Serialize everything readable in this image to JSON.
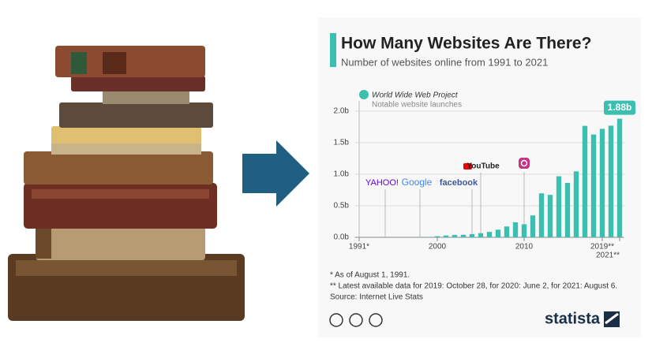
{
  "chart_data": {
    "type": "bar",
    "title": "How Many Websites Are There?",
    "subtitle": "Number of websites online from 1991 to 2021",
    "x": [
      1991,
      1992,
      1993,
      1994,
      1995,
      1996,
      1997,
      1998,
      1999,
      2000,
      2001,
      2002,
      2003,
      2004,
      2005,
      2006,
      2007,
      2008,
      2009,
      2010,
      2011,
      2012,
      2013,
      2014,
      2015,
      2016,
      2017,
      2018,
      2019,
      2020,
      2021
    ],
    "values": [
      1e-06,
      1e-05,
      0.00013,
      0.0027,
      0.023,
      0.257,
      1.1,
      2.4,
      3.2,
      17,
      29,
      38,
      40,
      51,
      65,
      86,
      121,
      172,
      238,
      207,
      347,
      697,
      673,
      968,
      863,
      1045,
      1767,
      1630,
      1720,
      1770,
      1880
    ],
    "value_labels": [
      null,
      null,
      null,
      null,
      null,
      null,
      null,
      null,
      null,
      null,
      null,
      null,
      null,
      null,
      null,
      null,
      null,
      null,
      null,
      null,
      null,
      null,
      null,
      null,
      null,
      null,
      null,
      null,
      null,
      null,
      "1.88b"
    ],
    "color": "#3bbfb0",
    "xlim": [
      1990.5,
      2021.5
    ],
    "xticks": [
      {
        "value": 1991,
        "label": "1991*"
      },
      2000,
      2010,
      {
        "value": 2019,
        "label": "2019**"
      },
      {
        "value": 2021,
        "label": "2021**"
      }
    ],
    "ylim": [
      0,
      2000
    ],
    "yticks": [
      {
        "value": 0,
        "label": "0.0b"
      },
      {
        "value": 500,
        "label": "0.5b"
      },
      {
        "value": 1000,
        "label": "1.0b"
      },
      {
        "value": 1500,
        "label": "1.5b"
      },
      {
        "value": 2000,
        "label": "2.0b"
      }
    ],
    "grid": true,
    "annotations": [
      {
        "label": "World Wide Web Project",
        "x": 1991
      },
      {
        "label": "YAHOO!",
        "x": 1994
      },
      {
        "label": "Google",
        "x": 1998
      },
      {
        "label": "facebook",
        "x": 2004
      },
      {
        "label": "YouTube",
        "x": 2005
      },
      {
        "icon": "instagram",
        "x": 2010
      }
    ],
    "annotation_note": "Notable website launches",
    "footnotes": [
      "*   As of August 1, 1991.",
      "** Latest available data for 2019: October 28, for 2020: June 2, for 2021: August 6.",
      "Source: Internet Live Stats"
    ],
    "brand": "statista"
  }
}
